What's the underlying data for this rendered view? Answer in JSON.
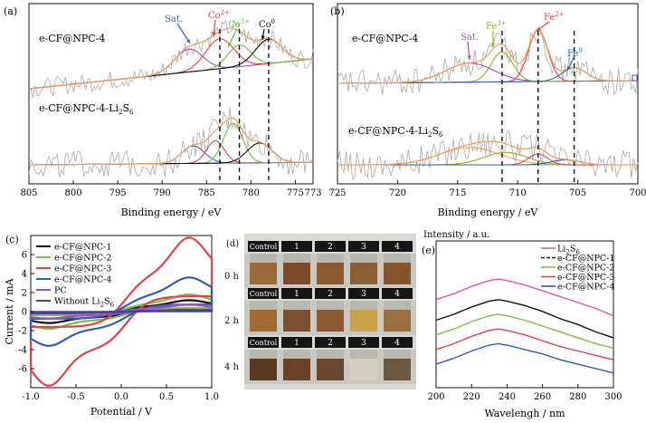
{
  "figure": {
    "panels": {
      "a": {
        "letter": "(a)",
        "upper_sample": "e-CF@NPC-4",
        "lower_sample": "e-CF@NPC-4-Li2S6",
        "xlabel": "Binding energy / eV",
        "xlim": [
          805,
          773
        ],
        "xticks": [
          805,
          800,
          795,
          790,
          785,
          780,
          775,
          773
        ],
        "peak_labels": [
          "Sat.",
          "Co2+",
          "Co3+",
          "Co0"
        ],
        "dashed_lines_ev": [
          783.5,
          781.3,
          778.0
        ]
      },
      "b": {
        "letter": "(b)",
        "upper_sample": "e-CF@NPC-4",
        "lower_sample": "e-CF@NPC-4-Li2S6",
        "xlabel": "Binding energy / eV",
        "xlim": [
          725,
          700
        ],
        "xticks": [
          725,
          720,
          715,
          710,
          705,
          700
        ],
        "peak_labels": [
          "Sat.",
          "Fe3+",
          "Fe2+",
          "Fe0"
        ],
        "dashed_lines_ev": [
          711.3,
          708.3,
          705.3
        ]
      },
      "d": {
        "letter": "(d)",
        "columns": [
          "Control",
          "1",
          "2",
          "3",
          "4"
        ],
        "rows": [
          "0 h",
          "2 h",
          "4 h"
        ]
      }
    }
  },
  "chart_data": [
    {
      "type": "line",
      "panel": "a",
      "xlabel": "Binding energy / eV",
      "ylabel": "",
      "xlim": [
        805,
        773
      ],
      "series": [
        {
          "name": "e-CF@NPC-4 envelope",
          "x": [
            805,
            795,
            790,
            787,
            784,
            782,
            780,
            779,
            778,
            776,
            773
          ],
          "y": [
            0.22,
            0.28,
            0.42,
            0.56,
            0.7,
            0.66,
            0.78,
            0.86,
            0.92,
            0.8,
            0.74
          ]
        },
        {
          "name": "e-CF@NPC-4-Li2S6 envelope",
          "x": [
            805,
            795,
            790,
            787,
            784,
            782,
            781,
            779,
            776,
            773
          ],
          "y": [
            -0.1,
            -0.08,
            -0.02,
            0.08,
            0.18,
            0.38,
            0.26,
            0.14,
            -0.02,
            -0.04
          ]
        }
      ]
    },
    {
      "type": "line",
      "panel": "b",
      "xlabel": "Binding energy / eV",
      "ylabel": "",
      "xlim": [
        725,
        700
      ],
      "series": [
        {
          "name": "e-CF@NPC-4 envelope",
          "x": [
            725,
            718,
            715,
            713,
            711.3,
            710,
            708.3,
            706,
            705.3,
            702,
            700
          ],
          "y": [
            0.36,
            0.4,
            0.55,
            0.68,
            0.82,
            0.72,
            1.06,
            0.5,
            0.46,
            0.42,
            0.42
          ]
        },
        {
          "name": "e-CF@NPC-4-Li2S6 envelope",
          "x": [
            725,
            718,
            714,
            711.5,
            710,
            708.3,
            706,
            702,
            700
          ],
          "y": [
            -0.08,
            -0.02,
            0.14,
            0.17,
            0.12,
            0.16,
            0.02,
            -0.04,
            -0.05
          ]
        }
      ]
    },
    {
      "type": "line",
      "panel": "c",
      "title": "",
      "xlabel": "Potential / V",
      "ylabel": "Current / mA",
      "xlim": [
        -1.0,
        1.0
      ],
      "ylim": [
        -8,
        8
      ],
      "xticks": [
        -1.0,
        -0.5,
        0.0,
        0.5,
        1.0
      ],
      "yticks": [
        -6,
        -4,
        -2,
        0,
        2,
        4,
        6
      ],
      "series": [
        {
          "name": "e-CF@NPC-1",
          "color": "#111111",
          "amplitude": 1.0
        },
        {
          "name": "e-CF@NPC-2",
          "color": "#7bc043",
          "amplitude": 1.5
        },
        {
          "name": "e-CF@NPC-3",
          "color": "#e0424b",
          "amplitude": 6.5
        },
        {
          "name": "e-CF@NPC-4",
          "color": "#2f5fb3",
          "amplitude": 3.0
        },
        {
          "name": "PC",
          "color": "#a24fc2",
          "amplitude": 0.6
        },
        {
          "name": "Without Li2S6",
          "color": "#4b3fa0",
          "amplitude": 0.15
        }
      ]
    },
    {
      "type": "line",
      "panel": "e",
      "title": "",
      "xlabel": "Wavelengh / nm",
      "ylabel": "Intensity / a.u.",
      "xlim": [
        200,
        300
      ],
      "xticks": [
        200,
        220,
        240,
        260,
        280,
        300
      ],
      "x": [
        200,
        210,
        220,
        230,
        235,
        240,
        250,
        260,
        270,
        280,
        290,
        300
      ],
      "series": [
        {
          "name": "Li2S6",
          "color": "#e05aa3",
          "values": [
            0.6,
            0.64,
            0.69,
            0.73,
            0.74,
            0.73,
            0.7,
            0.66,
            0.62,
            0.58,
            0.54,
            0.49
          ]
        },
        {
          "name": "e-CF@NPC-1",
          "color": "#111111",
          "values": [
            0.46,
            0.5,
            0.55,
            0.59,
            0.6,
            0.59,
            0.56,
            0.52,
            0.47,
            0.43,
            0.38,
            0.34
          ]
        },
        {
          "name": "e-CF@NPC-2",
          "color": "#7bc043",
          "values": [
            0.36,
            0.4,
            0.45,
            0.49,
            0.5,
            0.49,
            0.46,
            0.42,
            0.38,
            0.34,
            0.3,
            0.27
          ]
        },
        {
          "name": "e-CF@NPC-3",
          "color": "#e0424b",
          "values": [
            0.26,
            0.3,
            0.35,
            0.39,
            0.4,
            0.39,
            0.36,
            0.32,
            0.28,
            0.25,
            0.22,
            0.19
          ]
        },
        {
          "name": "e-CF@NPC-4",
          "color": "#2f5fb3",
          "values": [
            0.16,
            0.2,
            0.25,
            0.29,
            0.3,
            0.29,
            0.26,
            0.23,
            0.19,
            0.16,
            0.13,
            0.1
          ]
        }
      ]
    }
  ],
  "colors": {
    "raw": "#a9a9a9",
    "envelope": "#f0a060",
    "baseline": "#6ac9c3",
    "sat": "#3a66b5",
    "co2": "#e0424b",
    "co3": "#6cc04a",
    "co0": "#111111",
    "fe_sat": "#a64bb5",
    "fe3": "#9aab2a",
    "fe2": "#e0424b",
    "fe0": "#2f5fb3"
  }
}
